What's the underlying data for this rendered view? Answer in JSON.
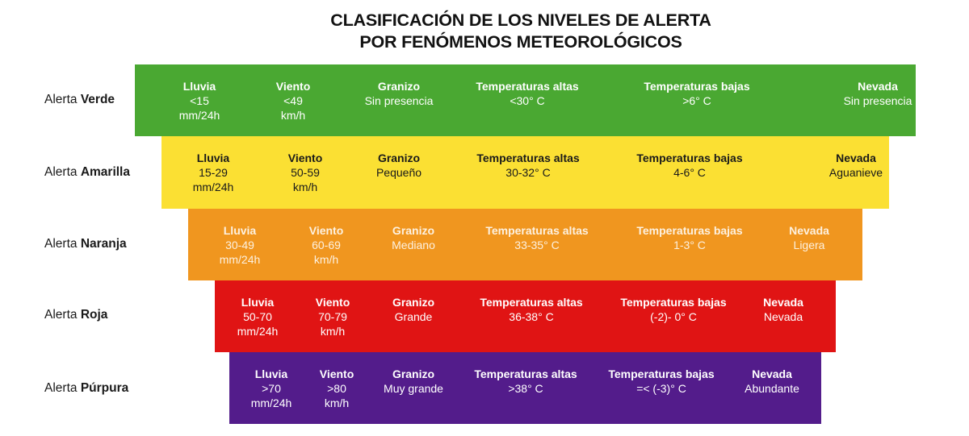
{
  "title": {
    "line1": "CLASIFICACIÓN DE LOS NIVELES DE ALERTA",
    "line2": "POR FENÓMENOS METEOROLÓGICOS"
  },
  "colors": {
    "verde": "#4aa832",
    "amarilla": "#fbe033",
    "naranja": "#f0961f",
    "roja": "#e01414",
    "purpura": "#531c8b"
  },
  "levels": [
    {
      "prefix": "Alerta",
      "name": "Verde",
      "color": "#4aa832",
      "text_color": "#ffffff",
      "cells": [
        {
          "header": "Lluvia",
          "lines": [
            "<15",
            "mm/24h"
          ]
        },
        {
          "header": "Viento",
          "lines": [
            "<49",
            "km/h"
          ]
        },
        {
          "header": "Granizo",
          "lines": [
            "Sin presencia"
          ]
        },
        {
          "header": "Temperaturas altas",
          "lines": [
            "<30° C"
          ]
        },
        {
          "header": "Temperaturas bajas",
          "lines": [
            ">6° C"
          ]
        },
        {
          "header": "Nevada",
          "lines": [
            "Sin presencia"
          ]
        }
      ]
    },
    {
      "prefix": "Alerta",
      "name": "Amarilla",
      "color": "#fbe033",
      "text_color": "#1a1a1a",
      "cells": [
        {
          "header": "Lluvia",
          "lines": [
            "15-29",
            "mm/24h"
          ]
        },
        {
          "header": "Viento",
          "lines": [
            "50-59",
            "km/h"
          ]
        },
        {
          "header": "Granizo",
          "lines": [
            "Pequeño"
          ]
        },
        {
          "header": "Temperaturas altas",
          "lines": [
            "30-32° C"
          ]
        },
        {
          "header": "Temperaturas bajas",
          "lines": [
            "4-6° C"
          ]
        },
        {
          "header": "Nevada",
          "lines": [
            "Aguanieve"
          ]
        }
      ]
    },
    {
      "prefix": "Alerta",
      "name": "Naranja",
      "color": "#f0961f",
      "text_color": "#fdf1e0",
      "cells": [
        {
          "header": "Lluvia",
          "lines": [
            "30-49",
            "mm/24h"
          ]
        },
        {
          "header": "Viento",
          "lines": [
            "60-69",
            "km/h"
          ]
        },
        {
          "header": "Granizo",
          "lines": [
            "Mediano"
          ]
        },
        {
          "header": "Temperaturas altas",
          "lines": [
            "33-35° C"
          ]
        },
        {
          "header": "Temperaturas bajas",
          "lines": [
            "1-3° C"
          ]
        },
        {
          "header": "Nevada",
          "lines": [
            "Ligera"
          ]
        }
      ]
    },
    {
      "prefix": "Alerta",
      "name": "Roja",
      "color": "#e01414",
      "text_color": "#ffffff",
      "cells": [
        {
          "header": "Lluvia",
          "lines": [
            "50-70",
            "mm/24h"
          ]
        },
        {
          "header": "Viento",
          "lines": [
            "70-79",
            "km/h"
          ]
        },
        {
          "header": "Granizo",
          "lines": [
            "Grande"
          ]
        },
        {
          "header": "Temperaturas altas",
          "lines": [
            "36-38° C"
          ]
        },
        {
          "header": "Temperaturas bajas",
          "lines": [
            "(-2)- 0° C"
          ]
        },
        {
          "header": "Nevada",
          "lines": [
            "Nevada"
          ]
        }
      ]
    },
    {
      "prefix": "Alerta",
      "name": "Púrpura",
      "color": "#531c8b",
      "text_color": "#ffffff",
      "cells": [
        {
          "header": "Lluvia",
          "lines": [
            ">70",
            "mm/24h"
          ]
        },
        {
          "header": "Viento",
          "lines": [
            ">80",
            "km/h"
          ]
        },
        {
          "header": "Granizo",
          "lines": [
            "Muy grande"
          ]
        },
        {
          "header": "Temperaturas altas",
          "lines": [
            ">38° C"
          ]
        },
        {
          "header": "Temperaturas bajas",
          "lines": [
            "=< (-3)° C"
          ]
        },
        {
          "header": "Nevada",
          "lines": [
            "Abundante"
          ]
        }
      ]
    }
  ]
}
